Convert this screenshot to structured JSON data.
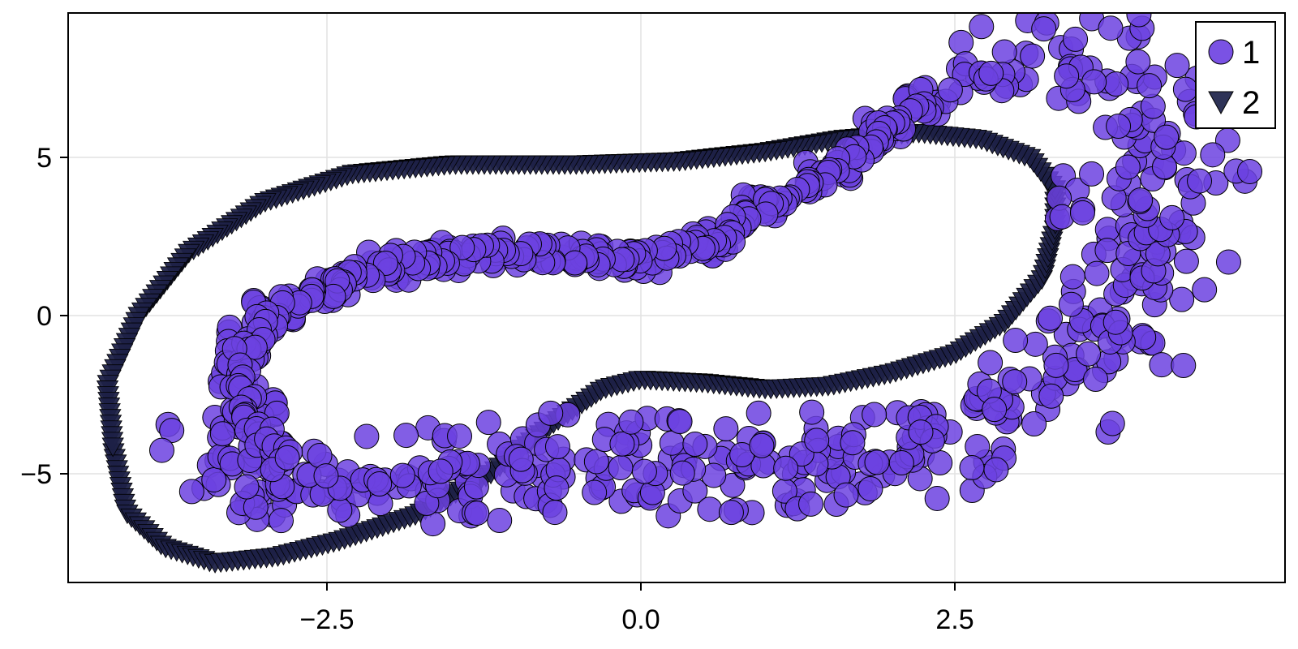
{
  "chart_data": {
    "type": "scatter",
    "title": "",
    "xlabel": "",
    "ylabel": "",
    "xlim": [
      -4.57,
      5.12
    ],
    "ylim": [
      -8.5,
      9.5
    ],
    "x_ticks": [
      -2.5,
      0.0,
      2.5
    ],
    "x_tick_labels": [
      "−2.5",
      "0.0",
      "2.5"
    ],
    "y_ticks": [
      -5,
      0,
      5
    ],
    "y_tick_labels": [
      "−5",
      "0",
      "5"
    ],
    "grid": true,
    "legend_position": "top-right",
    "series": [
      {
        "name": "1",
        "marker": "circle",
        "color": "#6c42e0",
        "opacity": 0.85,
        "stroke": "#000000",
        "description": "noisy closed loop (scattered widely on lower-right lobe)",
        "path_points": [
          [
            -3.5,
            -4.2
          ],
          [
            -3.3,
            -5.2
          ],
          [
            -3.0,
            -5.5
          ],
          [
            -2.5,
            -5.6
          ],
          [
            -2.0,
            -5.8
          ],
          [
            -1.5,
            -5.6
          ],
          [
            -1.0,
            -5.5
          ],
          [
            -0.5,
            -5.5
          ],
          [
            0.0,
            -5.4
          ],
          [
            0.5,
            -5.3
          ],
          [
            1.0,
            -5.4
          ],
          [
            1.5,
            -5.2
          ],
          [
            2.0,
            -5.0
          ],
          [
            2.5,
            -4.8
          ],
          [
            -1.8,
            -4.5
          ],
          [
            -1.2,
            -4.2
          ],
          [
            -0.6,
            -4.0
          ],
          [
            0.0,
            -4.0
          ],
          [
            0.6,
            -4.0
          ],
          [
            1.2,
            -3.9
          ],
          [
            1.8,
            -3.7
          ],
          [
            2.3,
            -3.5
          ],
          [
            2.8,
            -3.0
          ],
          [
            3.0,
            -1.8
          ],
          [
            3.3,
            -2.5
          ],
          [
            3.6,
            -1.2
          ],
          [
            3.9,
            -0.5
          ],
          [
            3.4,
            0.1
          ],
          [
            3.7,
            1.5
          ],
          [
            4.1,
            2.0
          ],
          [
            4.3,
            2.5
          ],
          [
            3.8,
            3.5
          ],
          [
            4.0,
            4.3
          ],
          [
            4.4,
            4.8
          ],
          [
            4.2,
            5.8
          ],
          [
            4.0,
            6.8
          ],
          [
            3.8,
            7.8
          ],
          [
            3.5,
            8.4
          ],
          [
            3.0,
            8.0
          ],
          [
            2.7,
            7.5
          ],
          [
            2.3,
            6.8
          ],
          [
            1.9,
            5.8
          ],
          [
            1.5,
            4.5
          ],
          [
            1.0,
            3.4
          ],
          [
            0.5,
            2.3
          ],
          [
            0.0,
            1.8
          ],
          [
            -0.5,
            1.9
          ],
          [
            -1.0,
            2.0
          ],
          [
            -1.5,
            1.9
          ],
          [
            -2.0,
            1.6
          ],
          [
            -2.5,
            0.9
          ],
          [
            -2.9,
            0.2
          ],
          [
            -3.1,
            -0.8
          ],
          [
            -3.2,
            -1.8
          ],
          [
            -3.1,
            -3.0
          ],
          [
            -3.0,
            -4.0
          ],
          [
            -2.8,
            -4.8
          ]
        ],
        "point_count": 700
      },
      {
        "name": "2",
        "marker": "triangle-down",
        "color": "#1d2147",
        "opacity": 0.95,
        "stroke": "#000000",
        "description": "smooth closed loop",
        "path_points": [
          [
            -4.2,
            -4.3
          ],
          [
            -4.1,
            -6.2
          ],
          [
            -3.8,
            -7.3
          ],
          [
            -3.4,
            -7.8
          ],
          [
            -2.9,
            -7.6
          ],
          [
            -2.4,
            -7.1
          ],
          [
            -1.8,
            -6.3
          ],
          [
            -1.2,
            -5.0
          ],
          [
            -0.7,
            -3.4
          ],
          [
            -0.3,
            -2.3
          ],
          [
            0.0,
            -2.0
          ],
          [
            0.5,
            -2.1
          ],
          [
            1.0,
            -2.3
          ],
          [
            1.5,
            -2.2
          ],
          [
            2.0,
            -1.8
          ],
          [
            2.5,
            -1.2
          ],
          [
            2.9,
            -0.2
          ],
          [
            3.2,
            1.2
          ],
          [
            3.3,
            2.8
          ],
          [
            3.3,
            4.0
          ],
          [
            3.1,
            5.0
          ],
          [
            2.7,
            5.6
          ],
          [
            2.2,
            5.8
          ],
          [
            1.6,
            5.6
          ],
          [
            1.0,
            5.2
          ],
          [
            0.3,
            4.9
          ],
          [
            -0.5,
            4.8
          ],
          [
            -1.5,
            4.8
          ],
          [
            -2.3,
            4.5
          ],
          [
            -3.0,
            3.6
          ],
          [
            -3.6,
            2.0
          ],
          [
            -4.0,
            0.0
          ],
          [
            -4.25,
            -2.2
          ],
          [
            -4.2,
            -4.3
          ]
        ],
        "point_count": 400
      }
    ]
  },
  "legend": {
    "items": [
      {
        "label": "1",
        "marker": "circle",
        "color": "#7a52e4"
      },
      {
        "label": "2",
        "marker": "triangle-down",
        "color": "#2e3357"
      }
    ]
  }
}
